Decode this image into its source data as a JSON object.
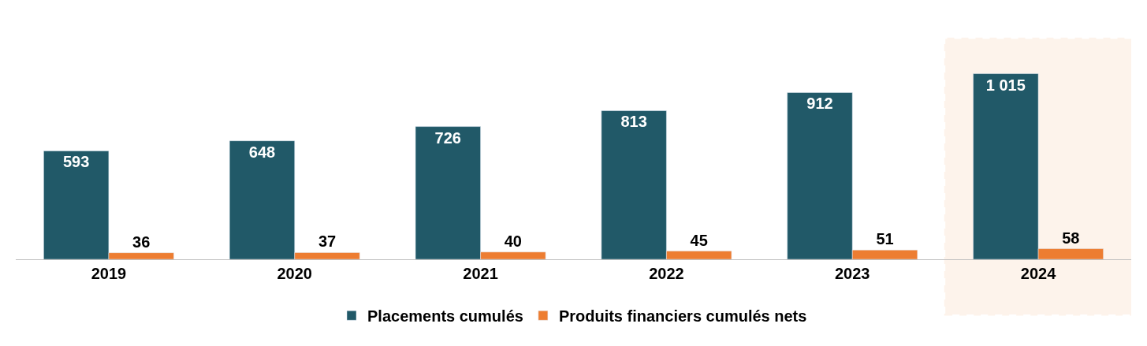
{
  "chart_data": {
    "type": "bar",
    "categories": [
      "2019",
      "2020",
      "2021",
      "2022",
      "2023",
      "2024"
    ],
    "series": [
      {
        "name": "Placements cumulés",
        "color": "#215968",
        "values": [
          593,
          648,
          726,
          813,
          912,
          1015
        ],
        "value_labels": [
          "593",
          "648",
          "726",
          "813",
          "912",
          "1 015"
        ]
      },
      {
        "name": "Produits financiers cumulés nets",
        "color": "#ed7d31",
        "values": [
          36,
          37,
          40,
          45,
          51,
          58
        ],
        "value_labels": [
          "36",
          "37",
          "40",
          "45",
          "51",
          "58"
        ]
      }
    ],
    "bands": [
      {
        "axis": "x",
        "from": "2024",
        "to": "2024",
        "color": "#f4a460"
      }
    ],
    "legend": "bottom",
    "grid": false
  }
}
